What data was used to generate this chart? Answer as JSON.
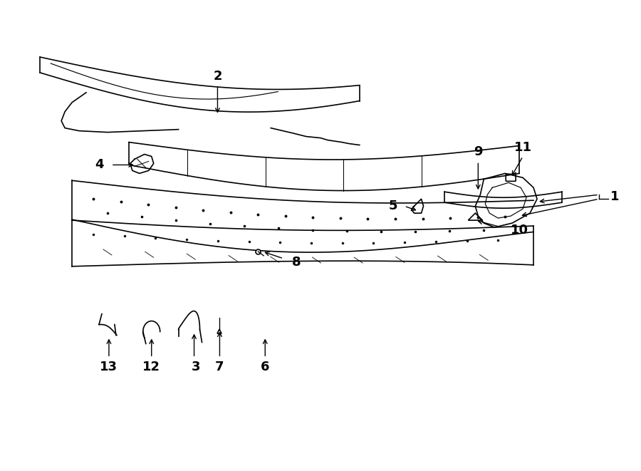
{
  "bg_color": "#ffffff",
  "line_color": "#000000",
  "fig_width": 9.0,
  "fig_height": 6.61,
  "fontsize": 13,
  "lw": 1.2
}
